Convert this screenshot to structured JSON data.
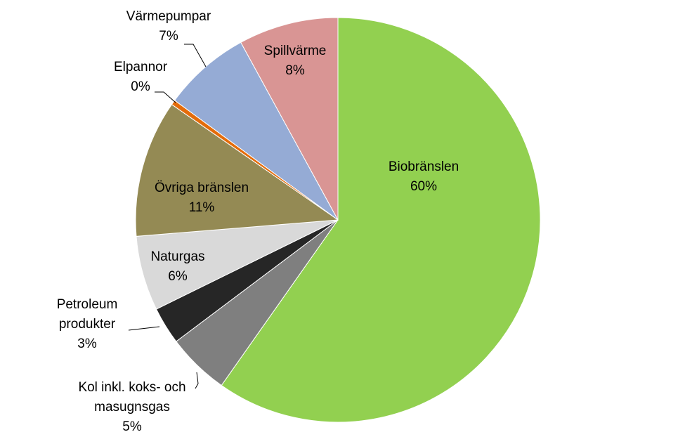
{
  "chart_data": {
    "type": "pie",
    "categories": [
      "Biobränslen",
      "Kol inkl. koks- och masugnsgas",
      "Petroleum produkter",
      "Naturgas",
      "Övriga bränslen",
      "Elpannor",
      "Värmepumpar",
      "Spillvärme"
    ],
    "values": [
      60,
      5,
      3,
      6,
      11,
      0.4,
      7,
      8
    ],
    "value_labels": [
      "60%",
      "5%",
      "3%",
      "6%",
      "11%",
      "0%",
      "7%",
      "8%"
    ],
    "colors": [
      "#92d050",
      "#7f7f7f",
      "#262626",
      "#d9d9d9",
      "#948a54",
      "#e46c0a",
      "#95abd5",
      "#d99594"
    ]
  }
}
